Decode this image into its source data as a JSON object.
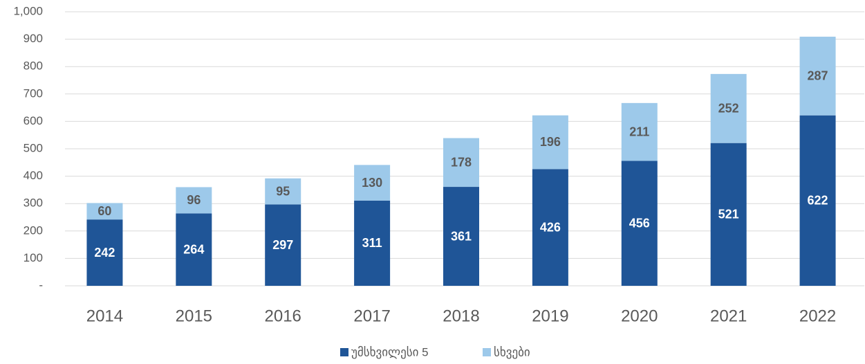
{
  "chart_data": {
    "type": "stacked_bar",
    "categories": [
      "2014",
      "2015",
      "2016",
      "2017",
      "2018",
      "2019",
      "2020",
      "2021",
      "2022"
    ],
    "series": [
      {
        "name": "უმსხვილესი 5",
        "color": "#1f5597",
        "values": [
          242,
          264,
          297,
          311,
          361,
          426,
          456,
          521,
          622
        ]
      },
      {
        "name": "სხვები",
        "color": "#9dc9ea",
        "values": [
          60,
          96,
          95,
          130,
          178,
          196,
          211,
          252,
          287
        ]
      }
    ],
    "ylim": [
      0,
      1000
    ],
    "yticks": [
      {
        "value": 0,
        "label": "-"
      },
      100,
      200,
      300,
      400,
      500,
      600,
      700,
      800,
      900,
      {
        "value": 1000,
        "label": "1,000"
      }
    ],
    "grid": true,
    "legend": "bottom"
  }
}
